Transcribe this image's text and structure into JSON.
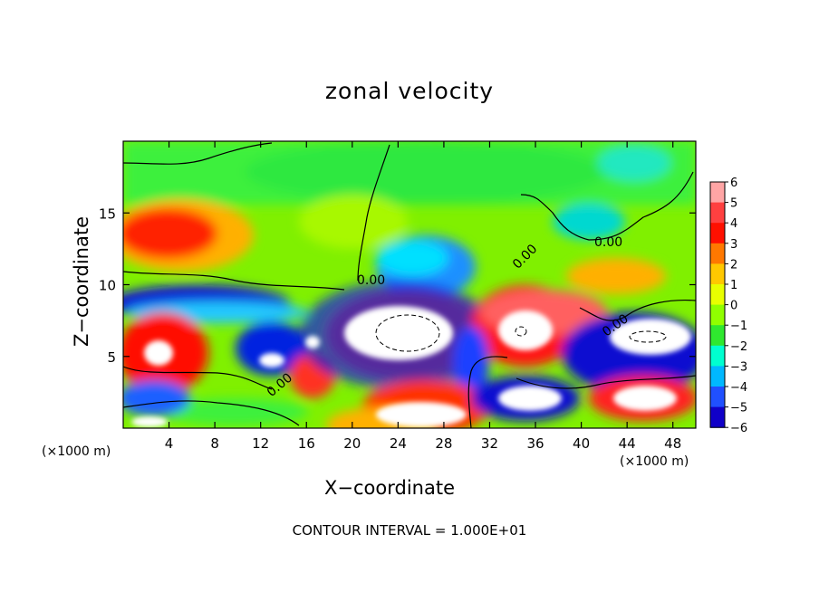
{
  "chart_data": {
    "type": "heatmap",
    "title": "zonal velocity",
    "xlabel": "X−coordinate",
    "ylabel": "Z−coordinate",
    "x_unit": "(×1000 m)",
    "xlim": [
      0,
      50
    ],
    "ylim": [
      0,
      20
    ],
    "x_ticks": [
      4,
      8,
      12,
      16,
      20,
      24,
      28,
      32,
      36,
      40,
      44,
      48
    ],
    "y_ticks": [
      5,
      10,
      15
    ],
    "colorbar": {
      "ticks": [
        "6",
        "5",
        "4",
        "3",
        "2",
        "1",
        "0",
        "−1",
        "−2",
        "−3",
        "−4",
        "−5",
        "−6"
      ],
      "colors": [
        "#ffa5a5",
        "#ff4040",
        "#ff1000",
        "#ff7800",
        "#ffc800",
        "#e8ff00",
        "#90ff00",
        "#2fe82f",
        "#00ffd0",
        "#00b8ff",
        "#2050ff",
        "#1000c8",
        "#7000b0"
      ]
    },
    "contour_labels": [
      "0.00",
      "0.00",
      "0.00",
      "0.00",
      "0.00"
    ],
    "footnote": "CONTOUR INTERVAL = 1.000E+01",
    "background_color": "#7ff020"
  }
}
